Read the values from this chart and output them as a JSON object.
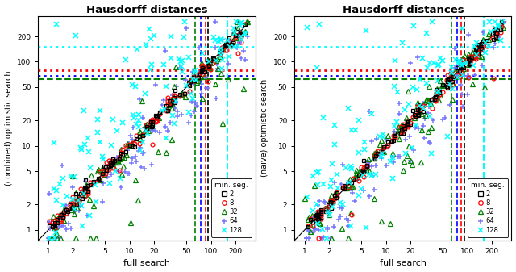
{
  "title": "Hausdorff distances",
  "xlabel": "full search",
  "ylabel_left": "(combined) optimistic search",
  "ylabel_right": "(naive) optimistic search",
  "xlim": [
    0.75,
    350
  ],
  "ylim": [
    0.75,
    350
  ],
  "xticks": [
    1,
    2,
    5,
    10,
    20,
    50,
    100,
    200
  ],
  "yticks": [
    1,
    2,
    5,
    10,
    20,
    50,
    100,
    200
  ],
  "vlines": [
    {
      "x": 64,
      "color": "green",
      "ls": "--",
      "lw": 1.2
    },
    {
      "x": 75,
      "color": "blue",
      "ls": "--",
      "lw": 1.2
    },
    {
      "x": 85,
      "color": "red",
      "ls": "--",
      "lw": 1.2
    },
    {
      "x": 93,
      "color": "black",
      "ls": "--",
      "lw": 1.2
    },
    {
      "x": 160,
      "color": "cyan",
      "ls": "--",
      "lw": 1.5
    }
  ],
  "hlines": [
    {
      "y": 150,
      "color": "cyan",
      "ls": ":",
      "lw": 2.0
    },
    {
      "y": 80,
      "color": "red",
      "ls": ":",
      "lw": 2.0
    },
    {
      "y": 68,
      "color": "blue",
      "ls": ":",
      "lw": 2.0
    },
    {
      "y": 62,
      "color": "green",
      "ls": "--",
      "lw": 1.5
    }
  ],
  "background_color": "white",
  "legend_title": "min. seg."
}
